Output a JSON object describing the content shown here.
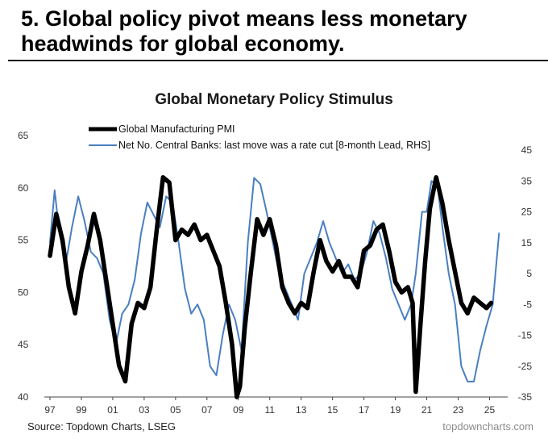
{
  "headline": "5. Global policy pivot means less monetary headwinds for global economy.",
  "footer": {
    "source": "Source: Topdown Charts, LSEG",
    "watermark": "topdowncharts.com"
  },
  "chart_data": {
    "type": "line",
    "title": "Global Monetary Policy Stimulus",
    "x_tick_labels": [
      "97",
      "99",
      "01",
      "03",
      "05",
      "07",
      "09",
      "11",
      "13",
      "15",
      "17",
      "19",
      "21",
      "23",
      "25"
    ],
    "x_tick_years": [
      1997,
      1999,
      2001,
      2003,
      2005,
      2007,
      2009,
      2011,
      2013,
      2015,
      2017,
      2019,
      2021,
      2023,
      2025
    ],
    "x_range": [
      1997,
      2025.9
    ],
    "y_left": {
      "range": [
        40,
        65
      ],
      "ticks": [
        40,
        45,
        50,
        55,
        60,
        65
      ]
    },
    "y_right": {
      "range": [
        -35,
        45
      ],
      "ticks": [
        -35,
        -25,
        -15,
        -5,
        5,
        15,
        25,
        35,
        45
      ]
    },
    "legend_placement": "top-left",
    "colors": {
      "pmi": "#000000",
      "banks": "#4a7fc1"
    },
    "series": [
      {
        "name": "Global Manufacturing PMI",
        "axis": "left",
        "x": [
          1997.0,
          1997.4,
          1997.8,
          1998.2,
          1998.6,
          1999.0,
          1999.4,
          1999.8,
          2000.2,
          2000.6,
          2001.0,
          2001.4,
          2001.8,
          2002.2,
          2002.6,
          2003.0,
          2003.4,
          2003.8,
          2004.2,
          2004.6,
          2005.0,
          2005.4,
          2005.8,
          2006.2,
          2006.6,
          2007.0,
          2007.4,
          2007.8,
          2008.2,
          2008.6,
          2008.9,
          2009.1,
          2009.4,
          2009.8,
          2010.2,
          2010.6,
          2011.0,
          2011.4,
          2011.8,
          2012.2,
          2012.6,
          2013.0,
          2013.4,
          2013.8,
          2014.2,
          2014.6,
          2015.0,
          2015.4,
          2015.8,
          2016.2,
          2016.6,
          2017.0,
          2017.4,
          2017.8,
          2018.2,
          2018.6,
          2019.0,
          2019.4,
          2019.8,
          2020.1,
          2020.3,
          2020.6,
          2020.9,
          2021.2,
          2021.6,
          2022.0,
          2022.4,
          2022.8,
          2023.2,
          2023.6,
          2024.0,
          2024.4,
          2024.8,
          2025.1
        ],
        "values": [
          53.5,
          57.5,
          55.0,
          50.5,
          48.0,
          52.0,
          54.5,
          57.5,
          55.0,
          51.0,
          47.0,
          43.0,
          41.5,
          47.0,
          49.0,
          48.5,
          50.5,
          56.0,
          61.0,
          60.5,
          55.0,
          56.0,
          55.5,
          56.5,
          55.0,
          55.5,
          54.0,
          52.5,
          49.0,
          45.0,
          40.0,
          41.0,
          46.5,
          52.0,
          57.0,
          55.5,
          57.0,
          54.5,
          50.5,
          49.0,
          48.0,
          49.0,
          48.5,
          52.0,
          55.0,
          53.0,
          52.0,
          53.0,
          51.5,
          51.5,
          50.5,
          54.0,
          54.5,
          56.0,
          56.5,
          54.0,
          51.0,
          50.0,
          50.5,
          49.0,
          40.5,
          47.0,
          53.0,
          58.0,
          61.0,
          58.5,
          55.0,
          52.0,
          49.0,
          48.0,
          49.5,
          49.0,
          48.5,
          49.0
        ]
      },
      {
        "name": "Net No. Central Banks: last move was a rate cut  [8-month Lead, RHS]",
        "axis": "right",
        "x": [
          1997.0,
          1997.3,
          1997.6,
          1998.0,
          1998.4,
          1998.8,
          1999.2,
          1999.6,
          2000.0,
          2000.4,
          2000.8,
          2001.2,
          2001.6,
          2002.0,
          2002.4,
          2002.8,
          2003.2,
          2003.6,
          2004.0,
          2004.4,
          2004.8,
          2005.2,
          2005.6,
          2006.0,
          2006.4,
          2006.8,
          2007.2,
          2007.6,
          2008.0,
          2008.4,
          2008.8,
          2009.2,
          2009.6,
          2010.0,
          2010.4,
          2010.8,
          2011.2,
          2011.6,
          2012.0,
          2012.4,
          2012.8,
          2013.2,
          2013.6,
          2014.0,
          2014.4,
          2014.8,
          2015.2,
          2015.6,
          2016.0,
          2016.4,
          2016.8,
          2017.2,
          2017.6,
          2018.0,
          2018.4,
          2018.8,
          2019.2,
          2019.6,
          2020.0,
          2020.3,
          2020.7,
          2021.0,
          2021.3,
          2021.7,
          2022.0,
          2022.4,
          2022.8,
          2023.2,
          2023.6,
          2024.0,
          2024.4,
          2024.8,
          2025.2,
          2025.6
        ],
        "values": [
          15.0,
          32.0,
          18.0,
          8.0,
          20.0,
          30.0,
          22.0,
          12.0,
          10.0,
          5.0,
          -10.0,
          -18.0,
          -8.0,
          -5.0,
          3.0,
          18.0,
          28.0,
          24.0,
          20.0,
          30.0,
          28.0,
          15.0,
          0.0,
          -8.0,
          -5.0,
          -10.0,
          -25.0,
          -28.0,
          -15.0,
          -5.0,
          -10.0,
          -20.0,
          15.0,
          36.0,
          34.0,
          25.0,
          15.0,
          5.0,
          0.0,
          -5.0,
          -10.0,
          5.0,
          10.0,
          15.0,
          22.0,
          15.0,
          10.0,
          5.0,
          8.0,
          3.0,
          5.0,
          12.0,
          22.0,
          18.0,
          10.0,
          0.0,
          -5.0,
          -10.0,
          -5.0,
          5.0,
          25.0,
          25.0,
          35.0,
          33.0,
          20.0,
          5.0,
          -5.0,
          -25.0,
          -30.0,
          -30.0,
          -20.0,
          -12.0,
          -5.0,
          18.0
        ]
      }
    ]
  }
}
